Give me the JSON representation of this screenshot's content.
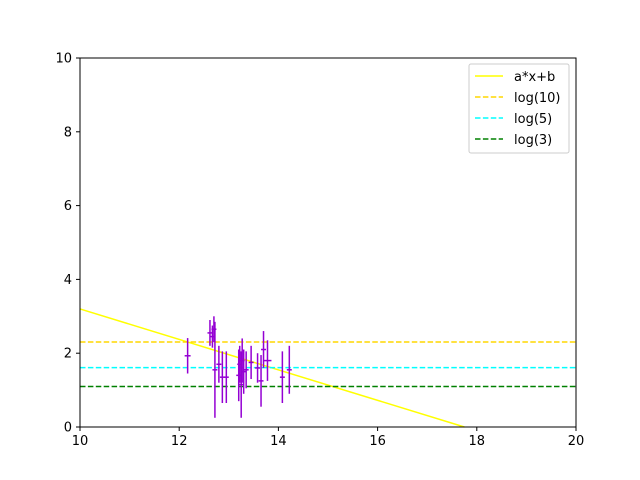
{
  "chart_data": {
    "type": "scatter",
    "title": "",
    "xlabel": "",
    "ylabel": "",
    "xlim": [
      10,
      20
    ],
    "ylim": [
      0,
      10
    ],
    "xticks": [
      "10",
      "12",
      "14",
      "16",
      "18",
      "20"
    ],
    "yticks": [
      "0",
      "2",
      "4",
      "6",
      "8",
      "10"
    ],
    "grid": false,
    "legend_position": "top-right",
    "colors": {
      "points": "#9400d3",
      "fit": "#ffff00",
      "log10": "#ffd700",
      "log5": "#00ffff",
      "log3": "#008000"
    },
    "lines": [
      {
        "name": "a*x+b",
        "style": "solid",
        "color": "#ffff00",
        "x": [
          10,
          17.75
        ],
        "y": [
          3.2,
          0.0
        ]
      },
      {
        "name": "log(10)",
        "style": "dashed",
        "color": "#ffd700",
        "y_const": 2.303
      },
      {
        "name": "log(5)",
        "style": "dashed",
        "color": "#00ffff",
        "y_const": 1.609
      },
      {
        "name": "log(3)",
        "style": "dashed",
        "color": "#008000",
        "y_const": 1.099
      }
    ],
    "points": [
      {
        "x": 12.17,
        "y": 1.93,
        "yerr": 0.48,
        "xerr": 0.06
      },
      {
        "x": 12.62,
        "y": 2.55,
        "yerr": 0.35,
        "xerr": 0.05
      },
      {
        "x": 12.67,
        "y": 2.45,
        "yerr": 0.3,
        "xerr": 0.05
      },
      {
        "x": 12.7,
        "y": 2.65,
        "yerr": 0.35,
        "xerr": 0.05
      },
      {
        "x": 12.72,
        "y": 1.55,
        "yerr": 1.3,
        "xerr": 0.05
      },
      {
        "x": 12.8,
        "y": 1.7,
        "yerr": 0.5,
        "xerr": 0.05
      },
      {
        "x": 12.87,
        "y": 1.35,
        "yerr": 0.7,
        "xerr": 0.05
      },
      {
        "x": 12.95,
        "y": 1.35,
        "yerr": 0.7,
        "xerr": 0.05
      },
      {
        "x": 13.2,
        "y": 1.4,
        "yerr": 0.7,
        "xerr": 0.05
      },
      {
        "x": 13.22,
        "y": 1.7,
        "yerr": 0.5,
        "xerr": 0.05
      },
      {
        "x": 13.25,
        "y": 1.15,
        "yerr": 0.9,
        "xerr": 0.05
      },
      {
        "x": 13.27,
        "y": 1.8,
        "yerr": 0.6,
        "xerr": 0.05
      },
      {
        "x": 13.3,
        "y": 1.5,
        "yerr": 0.6,
        "xerr": 0.05
      },
      {
        "x": 13.35,
        "y": 1.55,
        "yerr": 0.5,
        "xerr": 0.05
      },
      {
        "x": 13.45,
        "y": 1.75,
        "yerr": 0.45,
        "xerr": 0.05
      },
      {
        "x": 13.58,
        "y": 1.6,
        "yerr": 0.4,
        "xerr": 0.05
      },
      {
        "x": 13.65,
        "y": 1.25,
        "yerr": 0.7,
        "xerr": 0.05
      },
      {
        "x": 13.7,
        "y": 2.1,
        "yerr": 0.5,
        "xerr": 0.05
      },
      {
        "x": 13.78,
        "y": 1.8,
        "yerr": 0.55,
        "xerr": 0.08
      },
      {
        "x": 14.08,
        "y": 1.35,
        "yerr": 0.7,
        "xerr": 0.05
      },
      {
        "x": 14.22,
        "y": 1.55,
        "yerr": 0.65,
        "xerr": 0.05
      }
    ]
  }
}
